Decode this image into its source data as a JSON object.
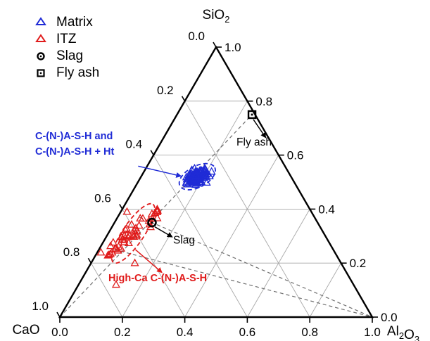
{
  "chart_data": {
    "type": "ternary-scatter",
    "apex_labels": {
      "top": "SiO2",
      "left": "CaO",
      "right": "Al2O3"
    },
    "ticks": {
      "left_edge": [
        "0.0",
        "0.2",
        "0.4",
        "0.6",
        "0.8",
        "1.0"
      ],
      "bottom_edge": [
        "0.0",
        "0.2",
        "0.4",
        "0.6",
        "0.8",
        "1.0"
      ],
      "right_edge": [
        "1.0",
        "0.8",
        "0.6",
        "0.4",
        "0.2",
        "0.0"
      ]
    },
    "grid": true,
    "legend": [
      {
        "name": "Matrix",
        "marker": "triangle",
        "color": "#1f2bd6"
      },
      {
        "name": "ITZ",
        "marker": "triangle",
        "color": "#e01b1b"
      },
      {
        "name": "Slag",
        "marker": "circle-dot",
        "color": "#000000"
      },
      {
        "name": "Fly ash",
        "marker": "square-dot",
        "color": "#000000"
      }
    ],
    "points": {
      "slag": {
        "SiO2": 0.35,
        "CaO": 0.53,
        "Al2O3": 0.12
      },
      "fly_ash": {
        "SiO2": 0.75,
        "CaO": 0.01,
        "Al2O3": 0.24
      }
    },
    "clusters": [
      {
        "name": "Matrix",
        "color": "#1f2bd6",
        "n": 110,
        "center": {
          "SiO2": 0.52,
          "CaO": 0.3,
          "Al2O3": 0.18
        },
        "spread_sio2": 0.016,
        "spread_al2o3": 0.015,
        "ellipse_rx": 28,
        "ellipse_ry": 15,
        "ellipse_angle": -28
      },
      {
        "name": "ITZ",
        "color": "#e01b1b",
        "n": 48,
        "center": {
          "SiO2": 0.31,
          "CaO": 0.61,
          "Al2O3": 0.08
        },
        "spread_sio2": 0.055,
        "spread_al2o3": 0.018,
        "ellipse_rx": 50,
        "ellipse_ry": 15,
        "ellipse_angle": -56
      }
    ],
    "dashed_lines": [
      {
        "from": {
          "SiO2": 0.0,
          "CaO": 1.0,
          "Al2O3": 0.0
        },
        "to": {
          "SiO2": 0.75,
          "CaO": 0.01,
          "Al2O3": 0.24
        }
      },
      {
        "from": {
          "SiO2": 0.25,
          "CaO": 0.7,
          "Al2O3": 0.05
        },
        "to": {
          "SiO2": 0.0,
          "CaO": 0.0,
          "Al2O3": 1.0
        }
      },
      {
        "from": {
          "SiO2": 0.37,
          "CaO": 0.56,
          "Al2O3": 0.07
        },
        "to": {
          "SiO2": 0.0,
          "CaO": 0.0,
          "Al2O3": 1.0
        }
      }
    ],
    "annotations": [
      {
        "text": "C-(N-)A-S-H and",
        "color": "#1f2bd6"
      },
      {
        "text": "C-(N-)A-S-H + Ht",
        "color": "#1f2bd6"
      },
      {
        "text": "High-Ca C-(N-)A-S-H",
        "color": "#e01b1b"
      },
      {
        "text": "Slag",
        "color": "#000000"
      },
      {
        "text": "Fly ash",
        "color": "#000000"
      }
    ]
  }
}
